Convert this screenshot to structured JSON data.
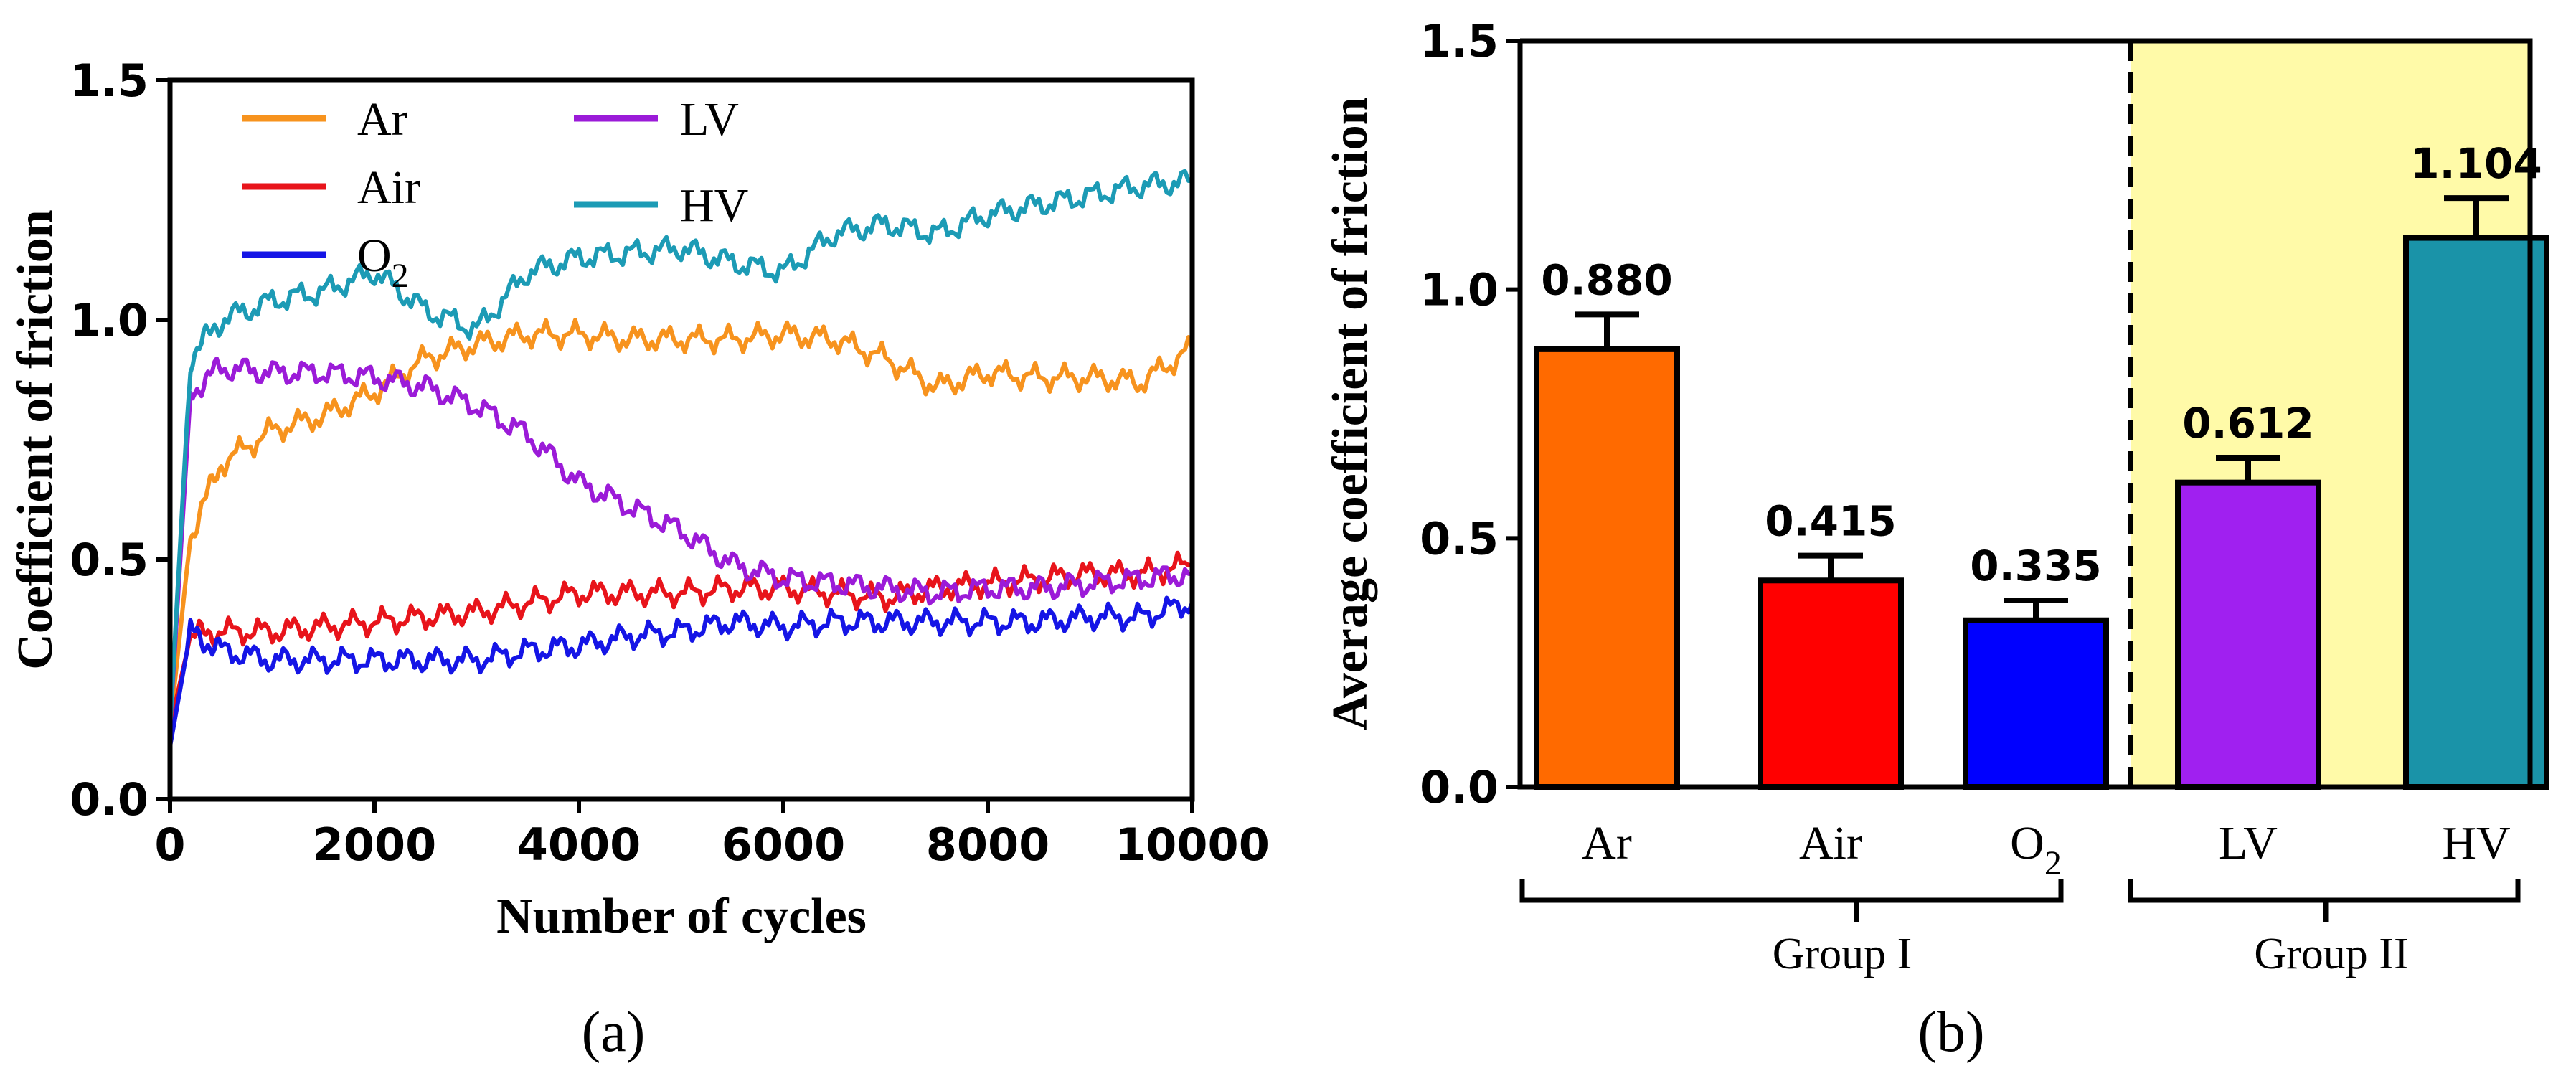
{
  "chart_data": [
    {
      "type": "line",
      "panel_label": "(a)",
      "xlabel": "Number of cycles",
      "ylabel": "Coefficient of friction",
      "xlim": [
        0,
        10000
      ],
      "ylim": [
        0,
        1.5
      ],
      "xticks": [
        "0",
        "2000",
        "4000",
        "6000",
        "8000",
        "10000"
      ],
      "yticks": [
        "0.0",
        "0.5",
        "1.0",
        "1.5"
      ],
      "legend": [
        "Ar",
        "Air",
        "O",
        "LV",
        "HV"
      ],
      "legend_subscript": "2",
      "x": [
        0,
        200,
        500,
        1000,
        1500,
        2000,
        2500,
        3000,
        3500,
        4000,
        4500,
        5000,
        5500,
        6000,
        6500,
        7000,
        7500,
        8000,
        8500,
        9000,
        9500,
        10000
      ],
      "series": [
        {
          "name": "Ar",
          "color": "#f7931e",
          "values": [
            0.15,
            0.55,
            0.7,
            0.77,
            0.8,
            0.85,
            0.92,
            0.95,
            0.97,
            0.97,
            0.96,
            0.96,
            0.96,
            0.97,
            0.96,
            0.92,
            0.86,
            0.89,
            0.88,
            0.88,
            0.87,
            0.94
          ]
        },
        {
          "name": "Air",
          "color": "#e8141b",
          "values": [
            0.15,
            0.34,
            0.35,
            0.35,
            0.36,
            0.37,
            0.38,
            0.39,
            0.41,
            0.43,
            0.43,
            0.43,
            0.44,
            0.44,
            0.43,
            0.42,
            0.44,
            0.45,
            0.46,
            0.47,
            0.47,
            0.49
          ]
        },
        {
          "name": "O2",
          "color": "#1515e6",
          "values": [
            0.11,
            0.35,
            0.31,
            0.29,
            0.29,
            0.29,
            0.29,
            0.29,
            0.31,
            0.32,
            0.34,
            0.35,
            0.37,
            0.36,
            0.37,
            0.37,
            0.37,
            0.37,
            0.37,
            0.38,
            0.38,
            0.41
          ]
        },
        {
          "name": "LV",
          "color": "#9b1bd8",
          "values": [
            0.15,
            0.85,
            0.9,
            0.89,
            0.89,
            0.88,
            0.86,
            0.82,
            0.76,
            0.66,
            0.61,
            0.56,
            0.49,
            0.46,
            0.45,
            0.44,
            0.43,
            0.44,
            0.44,
            0.45,
            0.46,
            0.47
          ]
        },
        {
          "name": "HV",
          "color": "#1c9bb5",
          "values": [
            0.15,
            0.92,
            1.0,
            1.04,
            1.06,
            1.1,
            1.02,
            0.98,
            1.1,
            1.13,
            1.14,
            1.15,
            1.12,
            1.1,
            1.18,
            1.2,
            1.18,
            1.22,
            1.24,
            1.26,
            1.28,
            1.29
          ]
        }
      ]
    },
    {
      "type": "bar",
      "panel_label": "(b)",
      "ylabel": "Average coefficient of friction",
      "ylim": [
        0,
        1.5
      ],
      "yticks": [
        "0.0",
        "0.5",
        "1.0",
        "1.5"
      ],
      "categories": [
        "Ar",
        "Air",
        "O",
        "LV",
        "HV"
      ],
      "category_subscript": "2",
      "values": [
        0.88,
        0.415,
        0.335,
        0.612,
        1.104
      ],
      "value_labels": [
        "0.880",
        "0.415",
        "0.335",
        "0.612",
        "1.104"
      ],
      "errors": [
        0.07,
        0.05,
        0.04,
        0.05,
        0.08
      ],
      "colors": [
        "#ff6a00",
        "#ff0000",
        "#0000ff",
        "#a020f0",
        "#1a93a8"
      ],
      "group_labels": [
        "Group I",
        "Group II"
      ],
      "highlight_color": "#fffaa8"
    }
  ]
}
